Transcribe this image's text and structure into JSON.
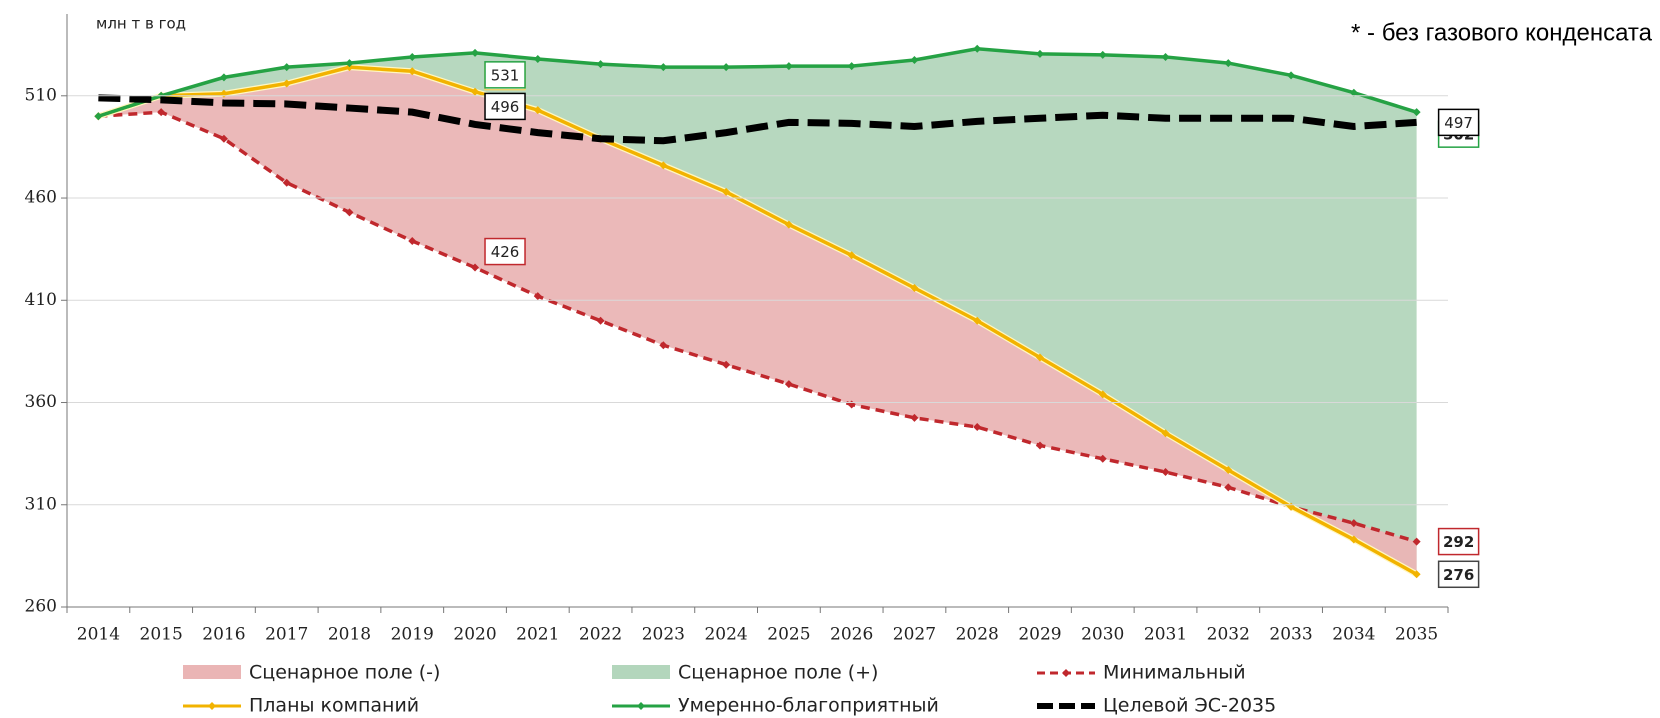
{
  "chart_data": {
    "type": "line",
    "y_label": "млн т в год",
    "annotation": "* - без газового конденсата",
    "categories": [
      "2014",
      "2015",
      "2016",
      "2017",
      "2018",
      "2019",
      "2020",
      "2021",
      "2022",
      "2023",
      "2024",
      "2025",
      "2026",
      "2027",
      "2028",
      "2029",
      "2030",
      "2031",
      "2032",
      "2033",
      "2034",
      "2035"
    ],
    "series": [
      {
        "name": "Минимальный",
        "color": "#c0282d",
        "dash": true,
        "values": [
          500,
          502,
          489,
          467.5,
          453,
          439,
          426,
          412,
          400,
          388,
          378.5,
          369,
          359,
          352.5,
          348,
          339,
          332.5,
          326,
          318.5,
          309,
          301,
          292
        ]
      },
      {
        "name": "Планы компаний",
        "color": "#f2b300",
        "dash": false,
        "values": [
          500,
          510,
          511,
          516,
          524,
          522,
          512,
          503,
          489,
          476,
          463,
          447,
          432,
          416,
          400,
          382,
          364,
          345,
          327,
          309,
          293,
          276
        ]
      },
      {
        "name": "Умеренно-благоприятный",
        "color": "#25a244",
        "dash": false,
        "values": [
          500,
          510,
          519,
          524,
          526,
          529,
          531,
          528,
          525.5,
          524,
          524,
          524.5,
          524.5,
          527.5,
          533,
          530.5,
          530,
          529,
          526,
          520,
          511.5,
          502
        ]
      },
      {
        "name": "Целевой ЭС-2035",
        "color": "#000000",
        "dash": true,
        "values": [
          509,
          508,
          506.5,
          506,
          504,
          502,
          496,
          492,
          489,
          488,
          492,
          497,
          496.5,
          495,
          497.5,
          499,
          500.5,
          499,
          499,
          499,
          495,
          497
        ]
      }
    ],
    "areas": [
      {
        "name": "Сценарное поле (-)",
        "color": "#eab5b5"
      },
      {
        "name": "Сценарное поле (+)",
        "color": "#b3d6bc"
      }
    ],
    "label_at": [
      6,
      21
    ],
    "ylim": [
      260,
      550
    ],
    "yticks": [
      260,
      310,
      360,
      410,
      460,
      510
    ],
    "grid": true
  }
}
